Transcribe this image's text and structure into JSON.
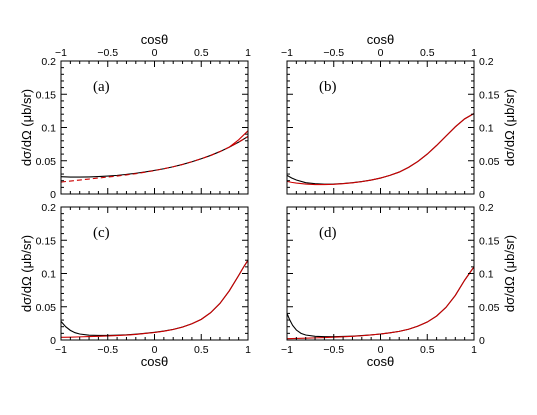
{
  "chart_data": [
    {
      "type": "line",
      "label": "(a)",
      "xlabel_top": "cosθ",
      "ylabel_left": "dσ/dΩ   (μb/sr)",
      "xlim": [
        -1,
        1
      ],
      "ylim": [
        0,
        0.2
      ],
      "xticks": [
        "−1",
        "−0.5",
        "0",
        "0.5",
        "1"
      ],
      "yticks": [
        "0",
        "0.05",
        "0.1",
        "0.15",
        "0.2"
      ],
      "grid": false,
      "series": [
        {
          "color": "#000000",
          "dash": "solid",
          "x": [
            -1,
            -0.9,
            -0.8,
            -0.7,
            -0.6,
            -0.5,
            -0.4,
            -0.3,
            -0.2,
            -0.1,
            0,
            0.1,
            0.2,
            0.3,
            0.4,
            0.5,
            0.6,
            0.7,
            0.8,
            0.9,
            1.0
          ],
          "y": [
            0.026,
            0.0255,
            0.0255,
            0.0257,
            0.0262,
            0.027,
            0.028,
            0.0295,
            0.0312,
            0.0332,
            0.0355,
            0.038,
            0.041,
            0.0445,
            0.0485,
            0.053,
            0.058,
            0.0638,
            0.0705,
            0.078,
            0.0865
          ]
        },
        {
          "color": "#cc0000",
          "dash": "dashed",
          "x": [
            -1,
            -0.9,
            -0.8,
            -0.7,
            -0.6,
            -0.5,
            -0.4,
            -0.3,
            -0.2,
            -0.1,
            0,
            0.1,
            0.2,
            0.3,
            0.4,
            0.5,
            0.6,
            0.7,
            0.8,
            0.9,
            1.0
          ],
          "y": [
            0.018,
            0.0195,
            0.021,
            0.0225,
            0.024,
            0.0255,
            0.027,
            0.0287,
            0.0305,
            0.0328,
            0.0352,
            0.038,
            0.041,
            0.0445,
            0.0485,
            0.053,
            0.058,
            0.0638,
            0.0705,
            0.078,
            0.0865
          ]
        },
        {
          "color": "#cc0000",
          "dash": "solid",
          "x": [
            0.8,
            0.9,
            1.0
          ],
          "y": [
            0.0705,
            0.0815,
            0.095
          ]
        }
      ]
    },
    {
      "type": "line",
      "label": "(b)",
      "xlabel_top": "cosθ",
      "ylabel_right": "dσ/dΩ   (μb/sr)",
      "xlim": [
        -1,
        1
      ],
      "ylim": [
        0,
        0.2
      ],
      "xticks": [
        "−1",
        "−0.5",
        "0",
        "0.5",
        "1"
      ],
      "yticks": [
        "0",
        "0.05",
        "0.1",
        "0.15",
        "0.2"
      ],
      "grid": false,
      "series": [
        {
          "color": "#000000",
          "dash": "solid",
          "x": [
            -1,
            -0.95,
            -0.9,
            -0.8,
            -0.7,
            -0.6,
            -0.5,
            -0.4,
            -0.3,
            -0.2,
            -0.1,
            0,
            0.1,
            0.2,
            0.3,
            0.4,
            0.5,
            0.6,
            0.7,
            0.8,
            0.9,
            1.0
          ],
          "y": [
            0.028,
            0.024,
            0.021,
            0.017,
            0.0155,
            0.0148,
            0.015,
            0.0158,
            0.017,
            0.0187,
            0.021,
            0.024,
            0.028,
            0.033,
            0.04,
            0.049,
            0.06,
            0.073,
            0.087,
            0.101,
            0.113,
            0.121
          ]
        },
        {
          "color": "#cc0000",
          "dash": "solid",
          "x": [
            -1,
            -0.95,
            -0.9,
            -0.8,
            -0.7,
            -0.6,
            -0.5,
            -0.4,
            -0.3,
            -0.2,
            -0.1,
            0,
            0.1,
            0.2,
            0.3,
            0.4,
            0.5,
            0.6,
            0.7,
            0.8,
            0.9,
            1.0
          ],
          "y": [
            0.019,
            0.0175,
            0.0165,
            0.015,
            0.0142,
            0.0142,
            0.0146,
            0.0155,
            0.0168,
            0.0186,
            0.021,
            0.024,
            0.028,
            0.033,
            0.04,
            0.049,
            0.06,
            0.073,
            0.087,
            0.101,
            0.113,
            0.121
          ]
        }
      ]
    },
    {
      "type": "line",
      "label": "(c)",
      "xlabel_bottom": "cosθ",
      "ylabel_left": "dσ/dΩ   (μb/sr)",
      "xlim": [
        -1,
        1
      ],
      "ylim": [
        0,
        0.2
      ],
      "xticks": [
        "−1",
        "−0.5",
        "0",
        "0.5",
        "1"
      ],
      "yticks": [
        "0",
        "0.05",
        "0.1",
        "0.15",
        "0.2"
      ],
      "grid": false,
      "series": [
        {
          "color": "#000000",
          "dash": "solid",
          "x": [
            -1,
            -0.95,
            -0.9,
            -0.85,
            -0.8,
            -0.7,
            -0.6,
            -0.5,
            -0.4,
            -0.3,
            -0.2,
            -0.1,
            0,
            0.1,
            0.2,
            0.3,
            0.4,
            0.5,
            0.6,
            0.7,
            0.8,
            0.9,
            0.95,
            1.0
          ],
          "y": [
            0.028,
            0.02,
            0.0145,
            0.011,
            0.009,
            0.0072,
            0.0068,
            0.0068,
            0.0072,
            0.0078,
            0.0088,
            0.01,
            0.0115,
            0.0135,
            0.016,
            0.0195,
            0.0245,
            0.031,
            0.041,
            0.055,
            0.074,
            0.097,
            0.109,
            0.12
          ]
        },
        {
          "color": "#cc0000",
          "dash": "solid",
          "x": [
            -1,
            -0.9,
            -0.8,
            -0.7,
            -0.6,
            -0.5,
            -0.4,
            -0.3,
            -0.2,
            -0.1,
            0,
            0.1,
            0.2,
            0.3,
            0.4,
            0.5,
            0.6,
            0.7,
            0.8,
            0.9,
            0.95,
            1.0
          ],
          "y": [
            0.004,
            0.0043,
            0.0047,
            0.0051,
            0.0056,
            0.0061,
            0.0067,
            0.0074,
            0.0084,
            0.0098,
            0.0113,
            0.0133,
            0.0158,
            0.0194,
            0.0244,
            0.031,
            0.041,
            0.055,
            0.074,
            0.097,
            0.109,
            0.12
          ]
        }
      ]
    },
    {
      "type": "line",
      "label": "(d)",
      "xlabel_bottom": "cosθ",
      "ylabel_right": "dσ/dΩ   (μb/sr)",
      "xlim": [
        -1,
        1
      ],
      "ylim": [
        0,
        0.2
      ],
      "xticks": [
        "−1",
        "−0.5",
        "0",
        "0.5",
        "1"
      ],
      "yticks": [
        "0",
        "0.05",
        "0.1",
        "0.15",
        "0.2"
      ],
      "grid": false,
      "series": [
        {
          "color": "#000000",
          "dash": "solid",
          "x": [
            -1,
            -0.97,
            -0.94,
            -0.9,
            -0.85,
            -0.8,
            -0.7,
            -0.6,
            -0.5,
            -0.4,
            -0.3,
            -0.2,
            -0.1,
            0,
            0.1,
            0.2,
            0.3,
            0.4,
            0.5,
            0.6,
            0.7,
            0.8,
            0.9,
            0.95,
            1.0
          ],
          "y": [
            0.04,
            0.03,
            0.022,
            0.015,
            0.01,
            0.0075,
            0.0055,
            0.005,
            0.005,
            0.0053,
            0.0058,
            0.0066,
            0.0077,
            0.009,
            0.0108,
            0.013,
            0.0162,
            0.0208,
            0.027,
            0.036,
            0.049,
            0.067,
            0.09,
            0.1,
            0.11
          ]
        },
        {
          "color": "#cc0000",
          "dash": "solid",
          "x": [
            -1,
            -0.9,
            -0.8,
            -0.7,
            -0.6,
            -0.5,
            -0.4,
            -0.3,
            -0.2,
            -0.1,
            0,
            0.1,
            0.2,
            0.3,
            0.4,
            0.5,
            0.6,
            0.7,
            0.8,
            0.9,
            0.95,
            1.0
          ],
          "y": [
            0.002,
            0.0023,
            0.0027,
            0.0032,
            0.0037,
            0.0042,
            0.0048,
            0.0055,
            0.0064,
            0.0076,
            0.009,
            0.0108,
            0.013,
            0.0162,
            0.0208,
            0.027,
            0.036,
            0.049,
            0.067,
            0.09,
            0.1,
            0.11
          ]
        }
      ]
    }
  ]
}
